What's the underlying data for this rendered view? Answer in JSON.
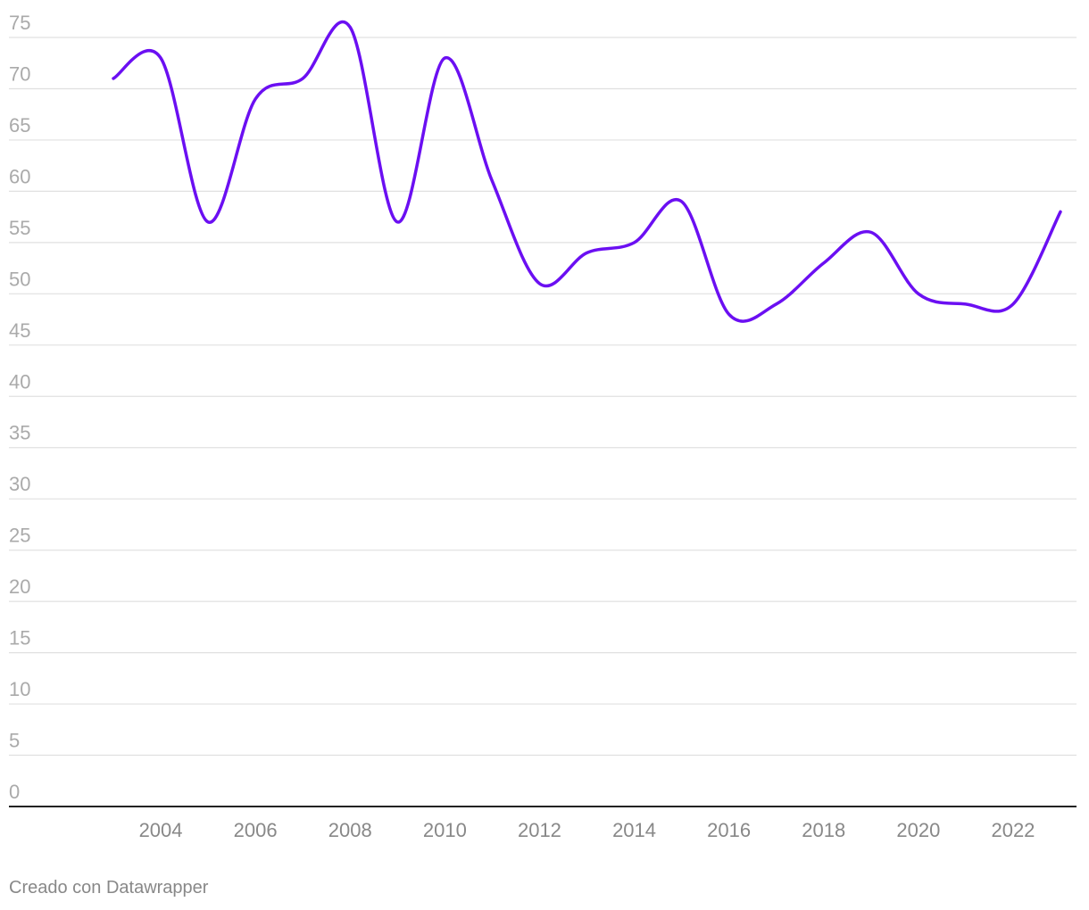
{
  "chart_data": {
    "type": "line",
    "x": [
      2003,
      2004,
      2005,
      2006,
      2007,
      2008,
      2009,
      2010,
      2011,
      2012,
      2013,
      2014,
      2015,
      2016,
      2017,
      2018,
      2019,
      2020,
      2021,
      2022,
      2023
    ],
    "series": [
      {
        "values": [
          71,
          73,
          57,
          69,
          71,
          76,
          57,
          73,
          61,
          51,
          54,
          55,
          59,
          48,
          49,
          53,
          56,
          50,
          49,
          49,
          58
        ],
        "color": "#6b0ff2"
      }
    ],
    "y_ticks": [
      0,
      5,
      10,
      15,
      20,
      25,
      30,
      35,
      40,
      45,
      50,
      55,
      60,
      65,
      70,
      75
    ],
    "x_ticks": [
      2004,
      2006,
      2008,
      2010,
      2012,
      2014,
      2016,
      2018,
      2020,
      2022
    ],
    "ylim": [
      0,
      75
    ],
    "grid": true,
    "title": "",
    "xlabel": "",
    "ylabel": ""
  },
  "footer": {
    "credit": "Creado con Datawrapper"
  },
  "colors": {
    "line": "#6b0ff2",
    "grid": "#e0e0e0",
    "axis": "#222222",
    "y_tick_text": "#aaaaaa",
    "x_tick_text": "#888888"
  }
}
